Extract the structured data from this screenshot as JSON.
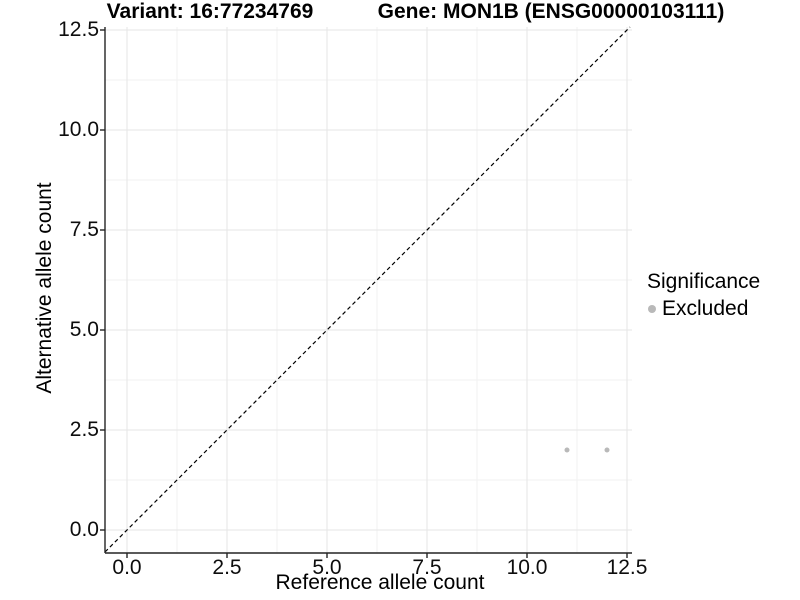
{
  "window": {
    "background": "#ffffff"
  },
  "chart_data": {
    "type": "scatter",
    "titles": {
      "variant": "Variant: 16:77234769",
      "gene": "Gene: MON1B (ENSG00000103111)"
    },
    "xlabel": "Reference allele count",
    "ylabel": "Alternative allele count",
    "x_axis": {
      "range": [
        -0.55,
        12.63
      ],
      "ticks": [
        0,
        2.5,
        5,
        7.5,
        10,
        12.5
      ],
      "tick_labels": [
        "0.0",
        "2.5",
        "5.0",
        "7.5",
        "10.0",
        "12.5"
      ],
      "minor_ticks": [
        1.25,
        3.75,
        6.25,
        8.75,
        11.25
      ]
    },
    "y_axis": {
      "range": [
        -0.575,
        12.6
      ],
      "ticks": [
        0,
        2.5,
        5,
        7.5,
        10,
        12.5
      ],
      "tick_labels": [
        "0.0",
        "2.5",
        "5.0",
        "7.5",
        "10.0",
        "12.5"
      ],
      "minor_ticks": [
        1.25,
        3.75,
        6.25,
        8.75,
        11.25
      ]
    },
    "grid": {
      "major": true,
      "minor": true
    },
    "reference_line": {
      "style": "dashed",
      "slope": 1,
      "intercept": 0,
      "color": "#000000"
    },
    "series": [
      {
        "name": "Excluded",
        "color": "#b9b9b9",
        "points": [
          {
            "x": 11,
            "y": 2
          },
          {
            "x": 12,
            "y": 2
          }
        ]
      }
    ],
    "legend": {
      "title": "Significance",
      "position": "right",
      "entries": [
        {
          "label": "Excluded",
          "color": "#b9b9b9",
          "marker": "circle"
        }
      ]
    }
  }
}
